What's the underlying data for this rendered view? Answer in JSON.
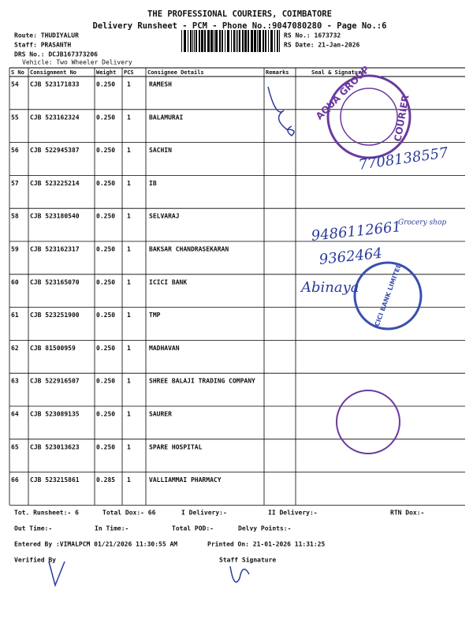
{
  "header": {
    "title": "THE PROFESSIONAL COURIERS, COIMBATORE",
    "subtitle": "Delivery Runsheet - PCM - Phone No.:9047080280 - Page No.:6",
    "route": "Route: THUDIYALUR",
    "staff": "Staff: PRASANTH",
    "drs": "DRS No.: DCJB167373206",
    "vehicle": "Vehicle: Two Wheeler Delivery",
    "rs_no": "RS No.: 1673732",
    "rs_date": "RS Date: 21-Jan-2026"
  },
  "table": {
    "columns": [
      "S No",
      "Consignment No",
      "Weight",
      "PCS",
      "Consignee Details",
      "Remarks",
      "Seal & Signature"
    ],
    "rows": [
      [
        "54",
        "CJB 523171833",
        "0.250",
        "1",
        "RAMESH"
      ],
      [
        "55",
        "CJB 523162324",
        "0.250",
        "1",
        "BALAMURAI"
      ],
      [
        "56",
        "CJB 522945387",
        "0.250",
        "1",
        "SACHIN"
      ],
      [
        "57",
        "CJB 523225214",
        "0.250",
        "1",
        "IB"
      ],
      [
        "58",
        "CJB 523180540",
        "0.250",
        "1",
        "SELVARAJ"
      ],
      [
        "59",
        "CJB 523162317",
        "0.250",
        "1",
        "BAKSAR CHANDRASEKARAN"
      ],
      [
        "60",
        "CJB 523165070",
        "0.250",
        "1",
        "ICICI BANK"
      ],
      [
        "61",
        "CJB 523251900",
        "0.250",
        "1",
        "TMP"
      ],
      [
        "62",
        "CJB 81500959",
        "0.250",
        "1",
        "MADHAVAN"
      ],
      [
        "63",
        "CJB 522916507",
        "0.250",
        "1",
        "SHREE BALAJI TRADING COMPANY"
      ],
      [
        "64",
        "CJB 523089135",
        "0.250",
        "1",
        "SAURER"
      ],
      [
        "65",
        "CJB 523013623",
        "0.250",
        "1",
        "SPARE HOSPITAL"
      ],
      [
        "66",
        "CJB 523215861",
        "0.285",
        "1",
        "VALLIAMMAI PHARMACY"
      ]
    ]
  },
  "footer": {
    "lines": [
      [
        "Tot. Runsheet:- 6",
        "Total Dox:-  66",
        "I Delivery:-",
        "II Delivery:-",
        "RTN Dox:-"
      ],
      [
        "Out Time:-",
        "In Time:-",
        "Total POD:-",
        "Delvy Points:-"
      ],
      [
        "Entered By :VIMALPCM 01/21/2026 11:30:55 AM",
        "Printed On: 21-01-2026 11:31:25"
      ],
      [
        "Verified By",
        "Staff Signature"
      ]
    ]
  },
  "stamps": {
    "aqua_top": "AQUA GROUP",
    "aqua_bottom": "COURIER",
    "icici": "ICICI BANK LIMITED"
  },
  "handwriting": [
    "7708138557",
    "9486112661",
    "9362464",
    "Abinaya",
    "Grocery shop"
  ]
}
